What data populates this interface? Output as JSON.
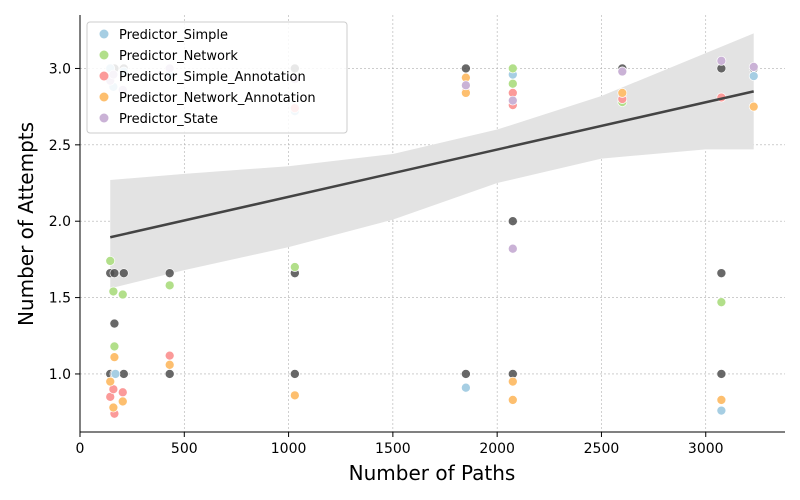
{
  "chart_data": {
    "type": "scatter",
    "title": "",
    "xlabel": "Number of Paths",
    "ylabel": "Number of Attempts",
    "xlim": [
      0,
      3380
    ],
    "ylim": [
      0.62,
      3.35
    ],
    "xticks": [
      "0",
      "500",
      "1000",
      "1500",
      "2000",
      "2500",
      "3000"
    ],
    "yticks": [
      "1.0",
      "1.5",
      "2.0",
      "2.5",
      "3.0"
    ],
    "grid": true,
    "legend_position": "top-left",
    "series": [
      {
        "name": "Predictor_Simple",
        "color": "#a6cee3",
        "points": [
          [
            145,
            3.0
          ],
          [
            160,
            2.88
          ],
          [
            170,
            1.0
          ],
          [
            210,
            2.98
          ],
          [
            430,
            2.96
          ],
          [
            1030,
            2.72
          ],
          [
            1850,
            0.91
          ],
          [
            2075,
            2.96
          ],
          [
            2600,
            2.98
          ],
          [
            3075,
            0.76
          ],
          [
            3230,
            2.95
          ]
        ]
      },
      {
        "name": "Predictor_Network",
        "color": "#b2df8a",
        "points": [
          [
            145,
            1.74
          ],
          [
            160,
            1.54
          ],
          [
            165,
            1.18
          ],
          [
            205,
            1.52
          ],
          [
            430,
            1.58
          ],
          [
            1030,
            1.7
          ],
          [
            2075,
            2.9
          ],
          [
            2075,
            3.0
          ],
          [
            2600,
            2.78
          ],
          [
            3075,
            1.47
          ]
        ]
      },
      {
        "name": "Predictor_Simple_Annotation",
        "color": "#fb9a99",
        "points": [
          [
            145,
            0.85
          ],
          [
            160,
            0.9
          ],
          [
            165,
            0.74
          ],
          [
            205,
            0.88
          ],
          [
            430,
            1.12
          ],
          [
            1030,
            2.74
          ],
          [
            1850,
            2.85
          ],
          [
            2075,
            2.76
          ],
          [
            2075,
            2.84
          ],
          [
            2600,
            2.8
          ],
          [
            3075,
            2.81
          ]
        ]
      },
      {
        "name": "Predictor_Network_Annotation",
        "color": "#fdbf6f",
        "points": [
          [
            145,
            0.95
          ],
          [
            160,
            0.78
          ],
          [
            165,
            1.11
          ],
          [
            205,
            0.82
          ],
          [
            430,
            1.06
          ],
          [
            1030,
            0.86
          ],
          [
            1850,
            2.84
          ],
          [
            1850,
            2.94
          ],
          [
            2075,
            0.95
          ],
          [
            2075,
            0.83
          ],
          [
            2600,
            2.84
          ],
          [
            3075,
            0.83
          ],
          [
            3230,
            2.75
          ]
        ]
      },
      {
        "name": "Predictor_State",
        "color": "#cab2d6",
        "points": [
          [
            145,
            2.92
          ],
          [
            160,
            2.96
          ],
          [
            205,
            2.86
          ],
          [
            430,
            3.0
          ],
          [
            1030,
            2.93
          ],
          [
            1850,
            2.89
          ],
          [
            2075,
            1.82
          ],
          [
            2075,
            2.79
          ],
          [
            2600,
            2.98
          ],
          [
            3075,
            3.05
          ],
          [
            3230,
            3.01
          ]
        ]
      }
    ],
    "overall_points": {
      "color": "#4d4d4d",
      "points": [
        [
          145,
          3.0
        ],
        [
          145,
          1.66
        ],
        [
          145,
          1.0
        ],
        [
          165,
          3.0
        ],
        [
          165,
          1.66
        ],
        [
          165,
          1.33
        ],
        [
          165,
          1.0
        ],
        [
          210,
          3.0
        ],
        [
          210,
          1.66
        ],
        [
          210,
          1.0
        ],
        [
          430,
          3.0
        ],
        [
          430,
          1.66
        ],
        [
          430,
          1.0
        ],
        [
          1030,
          3.0
        ],
        [
          1030,
          1.66
        ],
        [
          1030,
          1.0
        ],
        [
          1850,
          3.0
        ],
        [
          1850,
          1.0
        ],
        [
          2075,
          3.0
        ],
        [
          2075,
          2.0
        ],
        [
          2075,
          1.0
        ],
        [
          2600,
          3.0
        ],
        [
          3075,
          3.0
        ],
        [
          3075,
          1.66
        ],
        [
          3075,
          1.0
        ],
        [
          3230,
          3.0
        ]
      ]
    },
    "regression": {
      "color": "#444444",
      "line": [
        [
          145,
          1.895
        ],
        [
          3230,
          2.85
        ]
      ],
      "ci_band_color": "#e3e3e3",
      "ci_upper": [
        [
          145,
          2.27
        ],
        [
          500,
          2.31
        ],
        [
          1000,
          2.36
        ],
        [
          1500,
          2.44
        ],
        [
          2000,
          2.6
        ],
        [
          2500,
          2.82
        ],
        [
          3000,
          3.1
        ],
        [
          3230,
          3.23
        ]
      ],
      "ci_lower": [
        [
          145,
          1.56
        ],
        [
          500,
          1.68
        ],
        [
          1000,
          1.83
        ],
        [
          1500,
          2.01
        ],
        [
          2000,
          2.25
        ],
        [
          2500,
          2.41
        ],
        [
          3000,
          2.47
        ],
        [
          3230,
          2.47
        ]
      ]
    }
  }
}
